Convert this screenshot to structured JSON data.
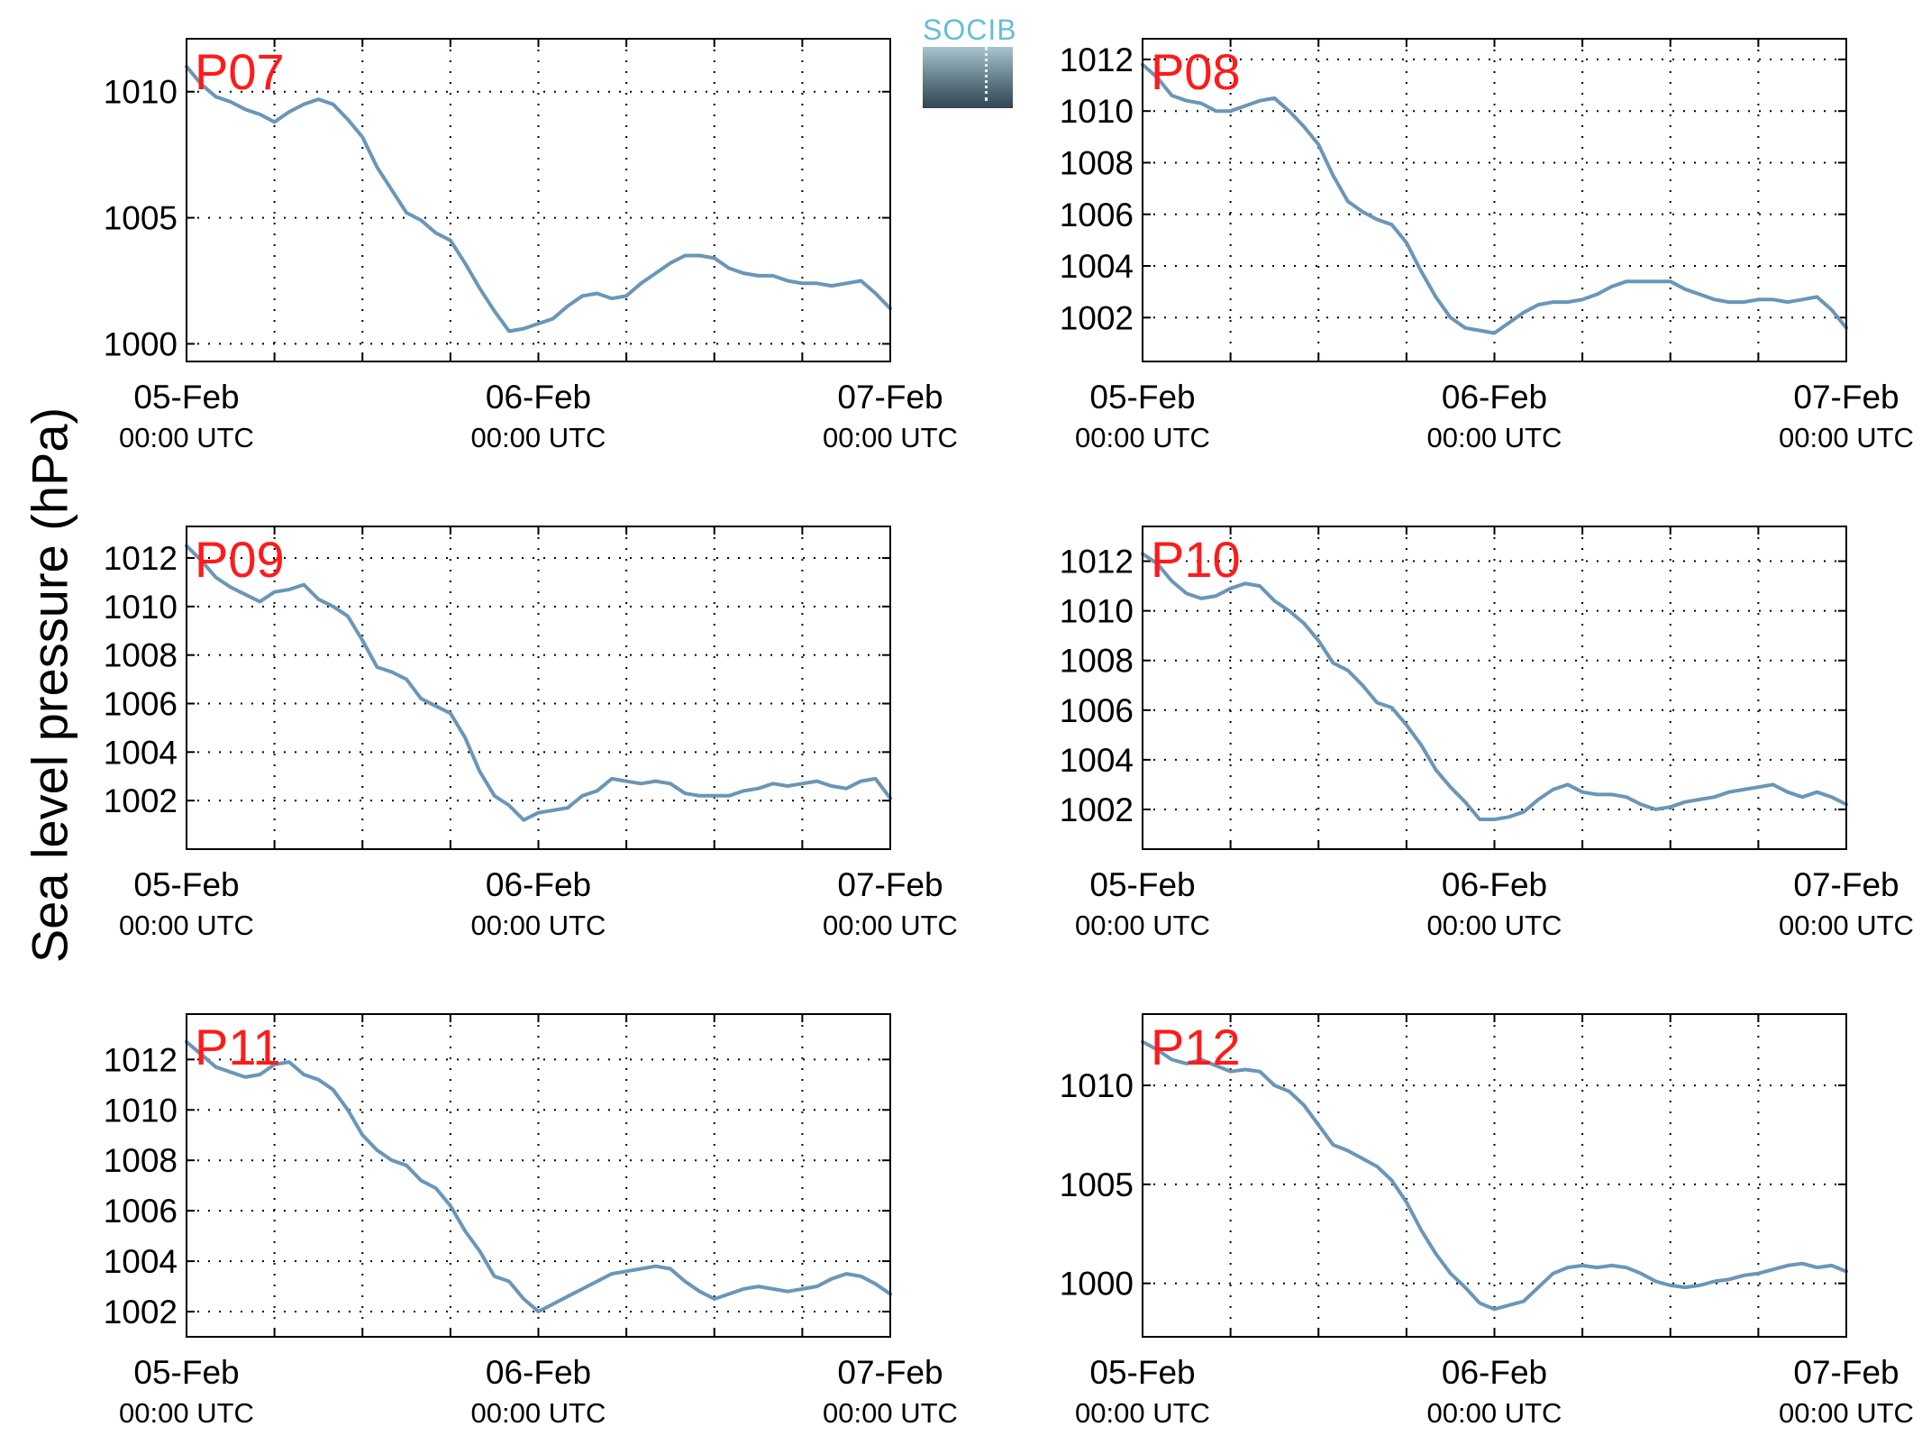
{
  "figure": {
    "ylabel": "Sea level pressure (hPa)",
    "logo_text": "SOCIB",
    "line_color": "#6a96b8",
    "station_label_color": "#ff1a1a"
  },
  "chart_data": [
    {
      "type": "line",
      "title": "P07",
      "xlabel": "",
      "ylabel": "Sea level pressure (hPa)",
      "x_ticks": [
        {
          "date": "05-Feb",
          "time": "00:00 UTC"
        },
        {
          "date": "06-Feb",
          "time": "00:00 UTC"
        },
        {
          "date": "07-Feb",
          "time": "00:00 UTC"
        }
      ],
      "xlim_hours": [
        0,
        48
      ],
      "x_grid_step_hours": 6,
      "ylim": [
        999.3,
        1012.1
      ],
      "yticks": [
        1000,
        1005,
        1010
      ],
      "grid": true,
      "series": [
        {
          "x_hours": [
            0,
            1,
            2,
            3,
            4,
            5,
            6,
            7,
            8,
            9,
            10,
            11,
            12,
            13,
            14,
            15,
            16,
            17,
            18,
            19,
            20,
            21,
            22,
            23,
            24,
            25,
            26,
            27,
            28,
            29,
            30,
            31,
            32,
            33,
            34,
            35,
            36,
            37,
            38,
            39,
            40,
            41,
            42,
            43,
            44,
            45,
            46,
            47,
            48
          ],
          "values": [
            1011.0,
            1010.3,
            1009.8,
            1009.6,
            1009.3,
            1009.1,
            1008.8,
            1009.2,
            1009.5,
            1009.7,
            1009.5,
            1008.9,
            1008.2,
            1007.0,
            1006.1,
            1005.2,
            1004.9,
            1004.4,
            1004.1,
            1003.2,
            1002.2,
            1001.3,
            1000.5,
            1000.6,
            1000.8,
            1001.0,
            1001.5,
            1001.9,
            1002.0,
            1001.8,
            1001.9,
            1002.4,
            1002.8,
            1003.2,
            1003.5,
            1003.5,
            1003.4,
            1003.0,
            1002.8,
            1002.7,
            1002.7,
            1002.5,
            1002.4,
            1002.4,
            1002.3,
            1002.4,
            1002.5,
            1002.0,
            1001.4
          ]
        }
      ]
    },
    {
      "type": "line",
      "title": "P08",
      "xlabel": "",
      "ylabel": "Sea level pressure (hPa)",
      "x_ticks": [
        {
          "date": "05-Feb",
          "time": "00:00 UTC"
        },
        {
          "date": "06-Feb",
          "time": "00:00 UTC"
        },
        {
          "date": "07-Feb",
          "time": "00:00 UTC"
        }
      ],
      "xlim_hours": [
        0,
        48
      ],
      "x_grid_step_hours": 6,
      "ylim": [
        1000.3,
        1012.8
      ],
      "yticks": [
        1002,
        1004,
        1006,
        1008,
        1010,
        1012
      ],
      "grid": true,
      "series": [
        {
          "x_hours": [
            0,
            1,
            2,
            3,
            4,
            5,
            6,
            7,
            8,
            9,
            10,
            11,
            12,
            13,
            14,
            15,
            16,
            17,
            18,
            19,
            20,
            21,
            22,
            23,
            24,
            25,
            26,
            27,
            28,
            29,
            30,
            31,
            32,
            33,
            34,
            35,
            36,
            37,
            38,
            39,
            40,
            41,
            42,
            43,
            44,
            45,
            46,
            47,
            48
          ],
          "values": [
            1011.8,
            1011.3,
            1010.6,
            1010.4,
            1010.3,
            1010.0,
            1010.0,
            1010.2,
            1010.4,
            1010.5,
            1010.0,
            1009.4,
            1008.7,
            1007.5,
            1006.5,
            1006.1,
            1005.8,
            1005.6,
            1004.9,
            1003.8,
            1002.8,
            1002.0,
            1001.6,
            1001.5,
            1001.4,
            1001.8,
            1002.2,
            1002.5,
            1002.6,
            1002.6,
            1002.7,
            1002.9,
            1003.2,
            1003.4,
            1003.4,
            1003.4,
            1003.4,
            1003.1,
            1002.9,
            1002.7,
            1002.6,
            1002.6,
            1002.7,
            1002.7,
            1002.6,
            1002.7,
            1002.8,
            1002.3,
            1001.6
          ]
        }
      ]
    },
    {
      "type": "line",
      "title": "P09",
      "xlabel": "",
      "ylabel": "Sea level pressure (hPa)",
      "x_ticks": [
        {
          "date": "05-Feb",
          "time": "00:00 UTC"
        },
        {
          "date": "06-Feb",
          "time": "00:00 UTC"
        },
        {
          "date": "07-Feb",
          "time": "00:00 UTC"
        }
      ],
      "xlim_hours": [
        0,
        48
      ],
      "x_grid_step_hours": 6,
      "ylim": [
        1000.0,
        1013.3
      ],
      "yticks": [
        1002,
        1004,
        1006,
        1008,
        1010,
        1012
      ],
      "grid": true,
      "series": [
        {
          "x_hours": [
            0,
            1,
            2,
            3,
            4,
            5,
            6,
            7,
            8,
            9,
            10,
            11,
            12,
            13,
            14,
            15,
            16,
            17,
            18,
            19,
            20,
            21,
            22,
            23,
            24,
            25,
            26,
            27,
            28,
            29,
            30,
            31,
            32,
            33,
            34,
            35,
            36,
            37,
            38,
            39,
            40,
            41,
            42,
            43,
            44,
            45,
            46,
            47,
            48
          ],
          "values": [
            1012.5,
            1011.9,
            1011.2,
            1010.8,
            1010.5,
            1010.2,
            1010.6,
            1010.7,
            1010.9,
            1010.3,
            1010.0,
            1009.6,
            1008.6,
            1007.5,
            1007.3,
            1007.0,
            1006.2,
            1005.9,
            1005.6,
            1004.6,
            1003.2,
            1002.2,
            1001.8,
            1001.2,
            1001.5,
            1001.6,
            1001.7,
            1002.2,
            1002.4,
            1002.9,
            1002.8,
            1002.7,
            1002.8,
            1002.7,
            1002.3,
            1002.2,
            1002.2,
            1002.2,
            1002.4,
            1002.5,
            1002.7,
            1002.6,
            1002.7,
            1002.8,
            1002.6,
            1002.5,
            1002.8,
            1002.9,
            1002.1
          ]
        }
      ]
    },
    {
      "type": "line",
      "title": "P10",
      "xlabel": "",
      "ylabel": "Sea level pressure (hPa)",
      "x_ticks": [
        {
          "date": "05-Feb",
          "time": "00:00 UTC"
        },
        {
          "date": "06-Feb",
          "time": "00:00 UTC"
        },
        {
          "date": "07-Feb",
          "time": "00:00 UTC"
        }
      ],
      "xlim_hours": [
        0,
        48
      ],
      "x_grid_step_hours": 6,
      "ylim": [
        1000.4,
        1013.4
      ],
      "yticks": [
        1002,
        1004,
        1006,
        1008,
        1010,
        1012
      ],
      "grid": true,
      "series": [
        {
          "x_hours": [
            0,
            1,
            2,
            3,
            4,
            5,
            6,
            7,
            8,
            9,
            10,
            11,
            12,
            13,
            14,
            15,
            16,
            17,
            18,
            19,
            20,
            21,
            22,
            23,
            24,
            25,
            26,
            27,
            28,
            29,
            30,
            31,
            32,
            33,
            34,
            35,
            36,
            37,
            38,
            39,
            40,
            41,
            42,
            43,
            44,
            45,
            46,
            47,
            48
          ],
          "values": [
            1012.3,
            1011.9,
            1011.2,
            1010.7,
            1010.5,
            1010.6,
            1010.9,
            1011.1,
            1011.0,
            1010.4,
            1010.0,
            1009.5,
            1008.8,
            1007.9,
            1007.6,
            1007.0,
            1006.3,
            1006.1,
            1005.4,
            1004.6,
            1003.6,
            1002.9,
            1002.3,
            1001.6,
            1001.6,
            1001.7,
            1001.9,
            1002.4,
            1002.8,
            1003.0,
            1002.7,
            1002.6,
            1002.6,
            1002.5,
            1002.2,
            1002.0,
            1002.1,
            1002.3,
            1002.4,
            1002.5,
            1002.7,
            1002.8,
            1002.9,
            1003.0,
            1002.7,
            1002.5,
            1002.7,
            1002.5,
            1002.2
          ]
        }
      ]
    },
    {
      "type": "line",
      "title": "P11",
      "xlabel": "",
      "ylabel": "Sea level pressure (hPa)",
      "x_ticks": [
        {
          "date": "05-Feb",
          "time": "00:00 UTC"
        },
        {
          "date": "06-Feb",
          "time": "00:00 UTC"
        },
        {
          "date": "07-Feb",
          "time": "00:00 UTC"
        }
      ],
      "xlim_hours": [
        0,
        48
      ],
      "x_grid_step_hours": 6,
      "ylim": [
        1001.0,
        1013.8
      ],
      "yticks": [
        1002,
        1004,
        1006,
        1008,
        1010,
        1012
      ],
      "grid": true,
      "series": [
        {
          "x_hours": [
            0,
            1,
            2,
            3,
            4,
            5,
            6,
            7,
            8,
            9,
            10,
            11,
            12,
            13,
            14,
            15,
            16,
            17,
            18,
            19,
            20,
            21,
            22,
            23,
            24,
            25,
            26,
            27,
            28,
            29,
            30,
            31,
            32,
            33,
            34,
            35,
            36,
            37,
            38,
            39,
            40,
            41,
            42,
            43,
            44,
            45,
            46,
            47,
            48
          ],
          "values": [
            1012.7,
            1012.2,
            1011.7,
            1011.5,
            1011.3,
            1011.4,
            1011.8,
            1011.9,
            1011.4,
            1011.2,
            1010.8,
            1010.0,
            1009.0,
            1008.4,
            1008.0,
            1007.8,
            1007.2,
            1006.9,
            1006.2,
            1005.2,
            1004.4,
            1003.4,
            1003.2,
            1002.5,
            1002.0,
            1002.3,
            1002.6,
            1002.9,
            1003.2,
            1003.5,
            1003.6,
            1003.7,
            1003.8,
            1003.7,
            1003.2,
            1002.8,
            1002.5,
            1002.7,
            1002.9,
            1003.0,
            1002.9,
            1002.8,
            1002.9,
            1003.0,
            1003.3,
            1003.5,
            1003.4,
            1003.1,
            1002.7
          ]
        }
      ]
    },
    {
      "type": "line",
      "title": "P12",
      "xlabel": "",
      "ylabel": "Sea level pressure (hPa)",
      "x_ticks": [
        {
          "date": "05-Feb",
          "time": "00:00 UTC"
        },
        {
          "date": "06-Feb",
          "time": "00:00 UTC"
        },
        {
          "date": "07-Feb",
          "time": "00:00 UTC"
        }
      ],
      "xlim_hours": [
        0,
        48
      ],
      "x_grid_step_hours": 6,
      "ylim": [
        997.3,
        1013.6
      ],
      "yticks": [
        1000,
        1005,
        1010
      ],
      "grid": true,
      "series": [
        {
          "x_hours": [
            0,
            1,
            2,
            3,
            4,
            5,
            6,
            7,
            8,
            9,
            10,
            11,
            12,
            13,
            14,
            15,
            16,
            17,
            18,
            19,
            20,
            21,
            22,
            23,
            24,
            25,
            26,
            27,
            28,
            29,
            30,
            31,
            32,
            33,
            34,
            35,
            36,
            37,
            38,
            39,
            40,
            41,
            42,
            43,
            44,
            45,
            46,
            47,
            48
          ],
          "values": [
            1012.2,
            1011.8,
            1011.3,
            1011.1,
            1011.3,
            1011.0,
            1010.7,
            1010.8,
            1010.7,
            1010.0,
            1009.7,
            1009.0,
            1008.0,
            1007.0,
            1006.7,
            1006.3,
            1005.9,
            1005.2,
            1004.1,
            1002.7,
            1001.5,
            1000.5,
            999.8,
            999.0,
            998.7,
            998.9,
            999.1,
            999.8,
            1000.5,
            1000.8,
            1000.9,
            1000.8,
            1000.9,
            1000.8,
            1000.5,
            1000.1,
            999.9,
            999.8,
            999.9,
            1000.1,
            1000.2,
            1000.4,
            1000.5,
            1000.7,
            1000.9,
            1001.0,
            1000.8,
            1000.9,
            1000.6
          ]
        }
      ]
    }
  ]
}
